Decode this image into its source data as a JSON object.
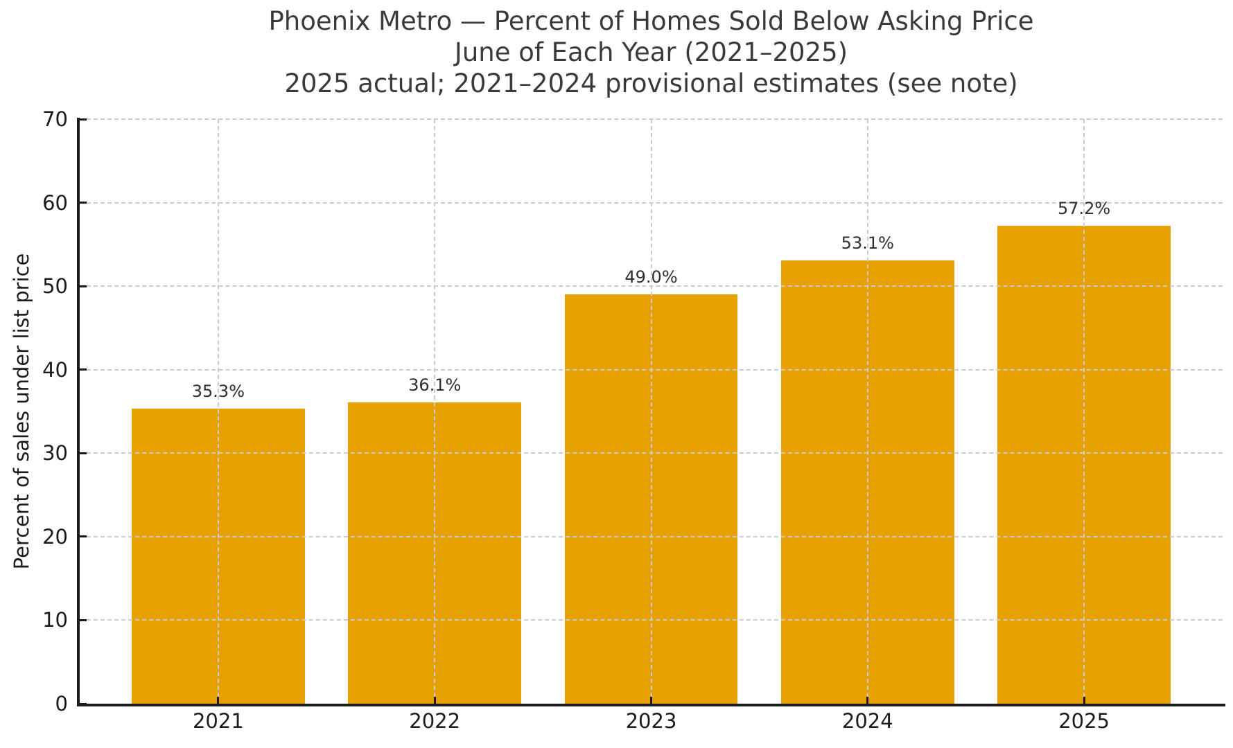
{
  "chart_data": {
    "type": "bar",
    "title": "Phoenix Metro — Percent of Homes Sold Below Asking Price",
    "subtitle": "June of Each Year (2021–2025)",
    "note": "2025 actual; 2021–2024 provisional estimates (see note)",
    "ylabel": "Percent of sales under list price",
    "xlabel": "",
    "categories": [
      "2021",
      "2022",
      "2023",
      "2024",
      "2025"
    ],
    "values": [
      35.3,
      36.1,
      49.0,
      53.1,
      57.2
    ],
    "bar_value_labels": [
      "35.3%",
      "36.1%",
      "49.0%",
      "53.1%",
      "57.2%"
    ],
    "ylim": [
      0,
      70
    ],
    "yticks": [
      0,
      10,
      20,
      30,
      40,
      50,
      60,
      70
    ],
    "legend": "none",
    "grid": "dashed horizontal at y ticks and dashed vertical at bar centers, drawn above bars",
    "colors": {
      "bar": "#E6A100",
      "gridline": "#CBCBCB",
      "axis": "#1C1C1C",
      "title_text": "#3A3A3A",
      "tick_text": "#1C1C1C",
      "value_label_text": "#2E2E2E",
      "background": "#FFFFFF"
    }
  }
}
